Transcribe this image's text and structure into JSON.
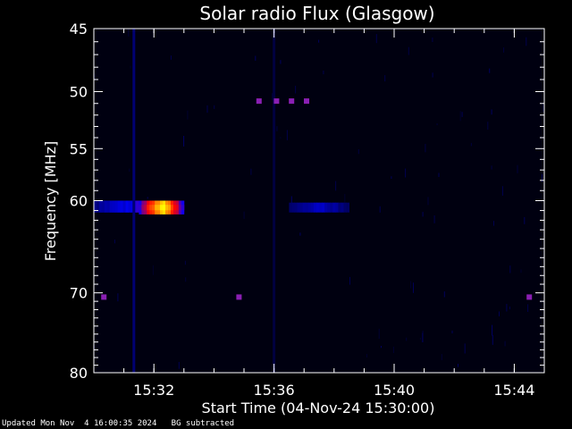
{
  "footer": {
    "updated": "Updated Mon Nov  4 16:00:35 2024",
    "bg_note": "BG subtracted"
  },
  "chart_data": {
    "type": "heatmap",
    "title": "Solar radio Flux (Glasgow)",
    "xlabel": "Start Time (04-Nov-24 15:30:00)",
    "ylabel": "Frequency [MHz]",
    "y_scale": "log",
    "xlim": [
      "15:30:00",
      "15:45:00"
    ],
    "ylim": [
      45,
      80
    ],
    "y_reversed": true,
    "x_ticks": [
      "15:32",
      "15:36",
      "15:40",
      "15:44"
    ],
    "y_ticks": [
      45,
      50,
      55,
      60,
      70,
      80
    ],
    "colormap": [
      "#000000",
      "#000066",
      "#0000ff",
      "#ff0000",
      "#ffff00"
    ],
    "features": [
      {
        "kind": "band",
        "start": "15:30:00",
        "end": "15:33:00",
        "freq_low": 60.0,
        "freq_high": 61.2,
        "intensity": 0.55
      },
      {
        "kind": "band",
        "start": "15:31:30",
        "end": "15:33:00",
        "freq_low": 60.0,
        "freq_high": 61.4,
        "intensity": 1.0
      },
      {
        "kind": "band",
        "start": "15:36:30",
        "end": "15:38:30",
        "freq_low": 60.2,
        "freq_high": 61.2,
        "intensity": 0.45
      },
      {
        "kind": "vline",
        "time": "15:31:20",
        "intensity": 0.6
      },
      {
        "kind": "vline",
        "time": "15:36:00",
        "intensity": 0.35
      },
      {
        "kind": "dot",
        "time": "15:35:30",
        "freq": 50.8
      },
      {
        "kind": "dot",
        "time": "15:36:05",
        "freq": 50.8
      },
      {
        "kind": "dot",
        "time": "15:36:35",
        "freq": 50.8
      },
      {
        "kind": "dot",
        "time": "15:37:05",
        "freq": 50.8
      },
      {
        "kind": "dot",
        "time": "15:30:20",
        "freq": 70.5
      },
      {
        "kind": "dot",
        "time": "15:34:50",
        "freq": 70.5
      },
      {
        "kind": "dot",
        "time": "15:44:30",
        "freq": 70.5
      }
    ]
  }
}
